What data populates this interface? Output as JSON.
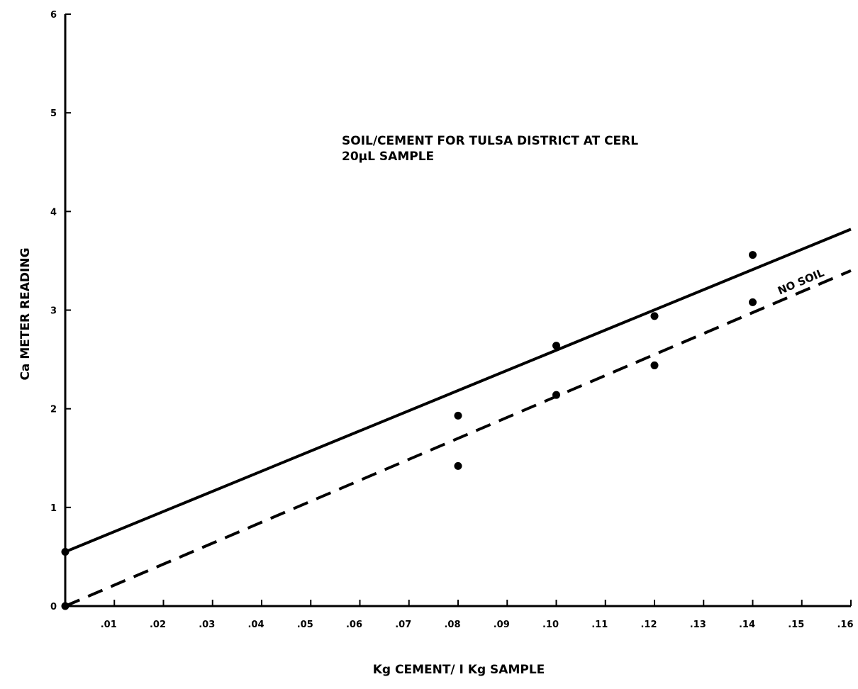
{
  "chart_data": {
    "type": "scatter",
    "title": "SOIL/CEMENT FOR TULSA DISTRICT AT CERL",
    "subtitle": "20µL SAMPLE",
    "xlabel": "Kg CEMENT/ I Kg SAMPLE",
    "ylabel": "Ca METER READING",
    "xlim": [
      0,
      0.16
    ],
    "ylim": [
      0,
      6
    ],
    "x_ticks": [
      0.01,
      0.02,
      0.03,
      0.04,
      0.05,
      0.06,
      0.07,
      0.08,
      0.09,
      0.1,
      0.11,
      0.12,
      0.13,
      0.14,
      0.15,
      0.16
    ],
    "x_tick_labels": [
      ".01",
      ".02",
      ".03",
      ".04",
      ".05",
      ".06",
      ".07",
      ".08",
      ".09",
      ".10",
      ".11",
      ".12",
      ".13",
      ".14",
      ".15",
      ".16"
    ],
    "y_ticks": [
      0,
      1,
      2,
      3,
      4,
      5,
      6
    ],
    "y_tick_labels": [
      "0",
      "1",
      "2",
      "3",
      "4",
      "5",
      "6"
    ],
    "grid": false,
    "points": [
      {
        "x": 0.0,
        "y": 0.55
      },
      {
        "x": 0.0,
        "y": 0.0
      },
      {
        "x": 0.08,
        "y": 1.93
      },
      {
        "x": 0.08,
        "y": 1.42
      },
      {
        "x": 0.1,
        "y": 2.64
      },
      {
        "x": 0.1,
        "y": 2.14
      },
      {
        "x": 0.12,
        "y": 2.94
      },
      {
        "x": 0.12,
        "y": 2.44
      },
      {
        "x": 0.14,
        "y": 3.56
      },
      {
        "x": 0.14,
        "y": 3.08
      }
    ],
    "series": [
      {
        "style": "solid",
        "x": [
          0.0,
          0.16
        ],
        "y": [
          0.55,
          3.82
        ]
      },
      {
        "name": "NO SOIL",
        "style": "dashed",
        "x": [
          0.0,
          0.16
        ],
        "y": [
          0.0,
          3.4
        ]
      }
    ]
  }
}
